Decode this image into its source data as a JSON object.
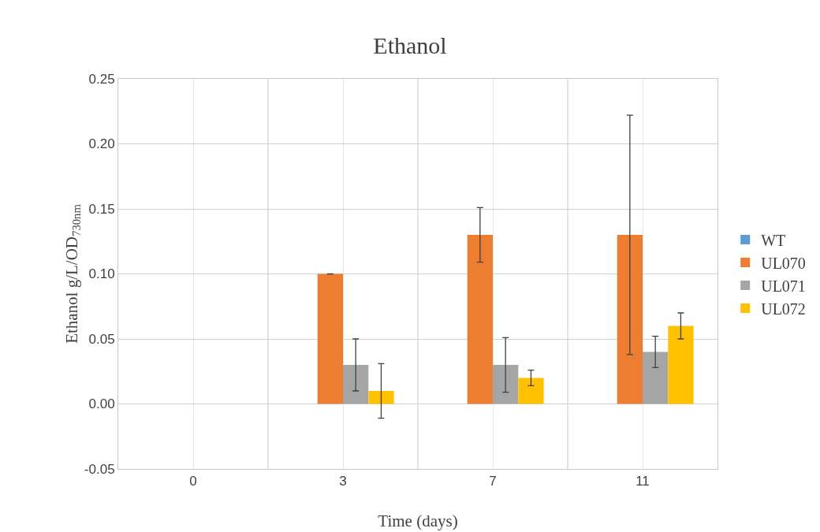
{
  "chart_data": {
    "type": "bar",
    "title": "Ethanol",
    "xlabel": "Time (days)",
    "ylabel": "Ethanol g/L/OD$_{730nm}$",
    "categories": [
      "0",
      "3",
      "7",
      "11"
    ],
    "series": [
      {
        "name": "WT",
        "color": "#5b9bd5",
        "values": [
          0,
          0,
          0,
          0
        ],
        "errors": [
          null,
          null,
          null,
          null
        ]
      },
      {
        "name": "UL070",
        "color": "#ed7d31",
        "values": [
          0,
          0.1,
          0.13,
          0.13
        ],
        "errors": [
          null,
          0,
          0.021,
          0.092
        ]
      },
      {
        "name": "UL071",
        "color": "#a5a5a5",
        "values": [
          0,
          0.03,
          0.03,
          0.04
        ],
        "errors": [
          null,
          0.02,
          0.021,
          0.012
        ]
      },
      {
        "name": "UL072",
        "color": "#ffc000",
        "values": [
          0,
          0.01,
          0.02,
          0.06
        ],
        "errors": [
          null,
          0.021,
          0.006,
          0.01
        ]
      }
    ],
    "ylim": [
      -0.05,
      0.25
    ],
    "yticks": [
      {
        "value": -0.05,
        "label": "-0.05"
      },
      {
        "value": 0,
        "label": "0.00"
      },
      {
        "value": 0.05,
        "label": "0.05"
      },
      {
        "value": 0.1,
        "label": "0.10"
      },
      {
        "value": 0.15,
        "label": "0.15"
      },
      {
        "value": 0.2,
        "label": "0.20"
      },
      {
        "value": 0.25,
        "label": "0.25"
      }
    ],
    "grid": true,
    "legend": "right"
  }
}
